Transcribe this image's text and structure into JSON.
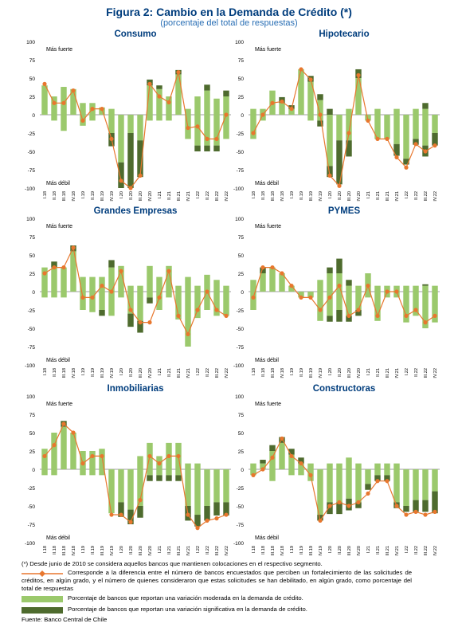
{
  "figure": {
    "title": "Figura 2: Cambio en la Demanda de Crédito (*)",
    "subtitle": "(porcentaje del total de respuestas)"
  },
  "colors": {
    "moderate": "#9bc96c",
    "significant": "#4e6b2e",
    "net_line": "#e8772e",
    "net_marker": "#e8772e",
    "title": "#003d7d",
    "axis": "#7f7f7f"
  },
  "labels": {
    "stronger": "Más fuerte",
    "weaker": "Más débil"
  },
  "chart_data": [
    {
      "type": "bar",
      "title": "Consumo",
      "ylim": [
        -100,
        100
      ],
      "yticks": [
        -100,
        -75,
        -50,
        -25,
        0,
        25,
        50,
        75,
        100
      ],
      "categories": [
        "I.18",
        "II.18",
        "III.18",
        "IV.18",
        "I.19",
        "II.19",
        "III.19",
        "IV.19",
        "I.20",
        "II.20",
        "III.20",
        "IV.20",
        "I.21",
        "II.21",
        "III.21",
        "IV.21",
        "I.22",
        "II.22",
        "III.22",
        "IV.22"
      ],
      "series": [
        {
          "key": "mod_pos",
          "values": [
            40,
            25,
            38,
            35,
            16,
            16,
            10,
            8,
            0,
            0,
            0,
            40,
            35,
            25,
            55,
            8,
            25,
            33,
            22,
            25
          ]
        },
        {
          "key": "mod_neg",
          "values": [
            0,
            -8,
            -22,
            0,
            -15,
            -8,
            0,
            -25,
            -65,
            -25,
            -35,
            -8,
            -8,
            -8,
            0,
            -33,
            -42,
            -42,
            -42,
            -33
          ]
        },
        {
          "key": "sig_pos",
          "values": [
            0,
            0,
            0,
            0,
            0,
            0,
            0,
            0,
            0,
            0,
            0,
            8,
            5,
            0,
            6,
            0,
            0,
            8,
            0,
            8
          ]
        },
        {
          "key": "sig_neg",
          "values": [
            0,
            0,
            0,
            0,
            0,
            0,
            0,
            -18,
            -35,
            -75,
            -50,
            0,
            0,
            0,
            0,
            0,
            -8,
            -8,
            -8,
            0
          ]
        },
        {
          "key": "net",
          "values": [
            42,
            16,
            16,
            33,
            -8,
            8,
            8,
            -33,
            -90,
            -100,
            -83,
            42,
            25,
            17,
            58,
            -18,
            -16,
            -33,
            -33,
            0
          ]
        }
      ]
    },
    {
      "type": "bar",
      "title": "Hipotecario",
      "ylim": [
        -100,
        100
      ],
      "yticks": [
        -100,
        -75,
        -50,
        -25,
        0,
        25,
        50,
        75,
        100
      ],
      "categories": [
        "I.18",
        "II.18",
        "III.18",
        "IV.18",
        "I.19",
        "II.19",
        "III.19",
        "IV.19",
        "I.20",
        "II.20",
        "III.20",
        "IV.20",
        "I.21",
        "II.21",
        "III.21",
        "IV.21",
        "I.22",
        "II.22",
        "III.22",
        "IV.22"
      ],
      "series": [
        {
          "key": "mod_pos",
          "values": [
            8,
            8,
            33,
            16,
            8,
            62,
            45,
            20,
            0,
            0,
            8,
            50,
            0,
            8,
            0,
            8,
            0,
            8,
            8,
            0
          ]
        },
        {
          "key": "mod_neg",
          "values": [
            -33,
            -8,
            0,
            0,
            0,
            0,
            -8,
            -8,
            -70,
            -35,
            -35,
            0,
            -8,
            -33,
            -33,
            -40,
            -60,
            -33,
            -42,
            -25
          ]
        },
        {
          "key": "sig_pos",
          "values": [
            0,
            0,
            0,
            8,
            5,
            0,
            8,
            8,
            8,
            0,
            0,
            12,
            0,
            0,
            0,
            0,
            0,
            0,
            8,
            0
          ]
        },
        {
          "key": "sig_neg",
          "values": [
            0,
            0,
            0,
            0,
            0,
            0,
            0,
            -8,
            -15,
            -60,
            -22,
            0,
            0,
            0,
            0,
            -16,
            -8,
            -8,
            -15,
            -17
          ]
        },
        {
          "key": "net",
          "values": [
            -25,
            0,
            16,
            18,
            8,
            62,
            48,
            0,
            -83,
            -97,
            -25,
            54,
            -8,
            -33,
            -33,
            -58,
            -72,
            -40,
            -50,
            -42
          ]
        }
      ]
    },
    {
      "type": "bar",
      "title": "Grandes Empresas",
      "ylim": [
        -100,
        100
      ],
      "yticks": [
        -100,
        -75,
        -50,
        -25,
        0,
        25,
        50,
        75,
        100
      ],
      "categories": [
        "I.18",
        "II.18",
        "III.18",
        "IV.18",
        "I.19",
        "II.19",
        "III.19",
        "IV.19",
        "I.20",
        "II.20",
        "III.20",
        "IV.20",
        "I.21",
        "II.21",
        "III.21",
        "IV.21",
        "I.22",
        "II.22",
        "III.22",
        "IV.22"
      ],
      "series": [
        {
          "key": "mod_pos",
          "values": [
            33,
            33,
            33,
            55,
            20,
            20,
            20,
            33,
            35,
            8,
            8,
            35,
            20,
            35,
            8,
            20,
            8,
            23,
            16,
            8
          ]
        },
        {
          "key": "mod_neg",
          "values": [
            -8,
            -8,
            -8,
            0,
            -25,
            -28,
            -25,
            -33,
            -8,
            -30,
            -40,
            -8,
            -25,
            -8,
            -38,
            -75,
            -36,
            -25,
            -33,
            -33
          ]
        },
        {
          "key": "sig_pos",
          "values": [
            0,
            8,
            0,
            8,
            0,
            0,
            0,
            10,
            0,
            0,
            0,
            0,
            0,
            0,
            0,
            0,
            0,
            0,
            0,
            0
          ]
        },
        {
          "key": "sig_neg",
          "values": [
            0,
            0,
            0,
            0,
            0,
            0,
            -8,
            0,
            0,
            -18,
            -16,
            -8,
            0,
            0,
            0,
            0,
            0,
            0,
            0,
            0
          ]
        },
        {
          "key": "net",
          "values": [
            25,
            33,
            33,
            60,
            -8,
            -8,
            8,
            0,
            28,
            -25,
            -42,
            -42,
            -8,
            28,
            -33,
            -58,
            -25,
            0,
            -25,
            -33
          ]
        }
      ]
    },
    {
      "type": "bar",
      "title": "PYMES",
      "ylim": [
        -100,
        100
      ],
      "yticks": [
        -100,
        -75,
        -50,
        -25,
        0,
        25,
        50,
        75,
        100
      ],
      "categories": [
        "I.18",
        "II.18",
        "III.18",
        "IV.18",
        "I.19",
        "II.19",
        "III.19",
        "IV.19",
        "I.20",
        "II.20",
        "III.20",
        "IV.20",
        "I.21",
        "II.21",
        "III.21",
        "IV.21",
        "I.22",
        "II.22",
        "III.22",
        "IV.22"
      ],
      "series": [
        {
          "key": "mod_pos",
          "values": [
            16,
            25,
            33,
            25,
            8,
            0,
            0,
            16,
            25,
            25,
            8,
            8,
            25,
            8,
            8,
            8,
            8,
            8,
            8,
            8
          ]
        },
        {
          "key": "mod_neg",
          "values": [
            -25,
            0,
            0,
            0,
            0,
            -8,
            -8,
            -40,
            -33,
            -25,
            -33,
            -25,
            -8,
            -40,
            -8,
            -8,
            -42,
            -33,
            -50,
            -42
          ]
        },
        {
          "key": "sig_pos",
          "values": [
            0,
            8,
            0,
            0,
            0,
            0,
            0,
            0,
            8,
            20,
            8,
            0,
            0,
            0,
            0,
            0,
            0,
            0,
            2,
            0
          ]
        },
        {
          "key": "sig_neg",
          "values": [
            0,
            0,
            0,
            0,
            0,
            0,
            0,
            0,
            -8,
            -16,
            -8,
            -8,
            0,
            0,
            0,
            0,
            0,
            0,
            0,
            0
          ]
        },
        {
          "key": "net",
          "values": [
            -8,
            33,
            33,
            25,
            8,
            -8,
            -8,
            -25,
            -8,
            8,
            -33,
            -25,
            8,
            -33,
            0,
            0,
            -33,
            -25,
            -42,
            -33
          ]
        }
      ]
    },
    {
      "type": "bar",
      "title": "Inmobiliarias",
      "ylim": [
        -100,
        100
      ],
      "yticks": [
        -100,
        -75,
        -50,
        -25,
        0,
        25,
        50,
        75,
        100
      ],
      "categories": [
        "I.18",
        "II.18",
        "III.18",
        "IV.18",
        "I.19",
        "II.19",
        "III.19",
        "IV.19",
        "I.20",
        "II.20",
        "III.20",
        "IV.20",
        "I.21",
        "II.21",
        "III.21",
        "IV.21",
        "I.22",
        "II.22",
        "III.22",
        "IV.22"
      ],
      "series": [
        {
          "key": "mod_pos",
          "values": [
            28,
            50,
            58,
            50,
            25,
            25,
            28,
            0,
            0,
            0,
            18,
            36,
            18,
            36,
            36,
            8,
            8,
            0,
            0,
            0
          ]
        },
        {
          "key": "mod_neg",
          "values": [
            -8,
            -8,
            0,
            0,
            -8,
            -8,
            -8,
            -60,
            -45,
            -55,
            -50,
            -8,
            -8,
            -8,
            -8,
            -50,
            -62,
            -50,
            -45,
            -45
          ]
        },
        {
          "key": "sig_pos",
          "values": [
            0,
            0,
            8,
            0,
            0,
            0,
            0,
            0,
            0,
            0,
            0,
            0,
            0,
            0,
            0,
            0,
            0,
            0,
            0,
            0
          ]
        },
        {
          "key": "sig_neg",
          "values": [
            0,
            0,
            0,
            0,
            0,
            0,
            0,
            0,
            -20,
            -20,
            -16,
            -8,
            -8,
            -8,
            -8,
            -20,
            -16,
            -20,
            -18,
            -18
          ]
        },
        {
          "key": "net",
          "values": [
            18,
            33,
            62,
            50,
            8,
            18,
            18,
            -62,
            -62,
            -72,
            -42,
            18,
            8,
            18,
            18,
            -62,
            -80,
            -70,
            -67,
            -62
          ]
        }
      ]
    },
    {
      "type": "bar",
      "title": "Constructoras",
      "ylim": [
        -100,
        100
      ],
      "yticks": [
        -100,
        -75,
        -50,
        -25,
        0,
        25,
        50,
        75,
        100
      ],
      "categories": [
        "I.18",
        "II.18",
        "III.18",
        "IV.18",
        "I.19",
        "II.19",
        "III.19",
        "IV.19",
        "I.20",
        "II.20",
        "III.20",
        "IV.20",
        "I.21",
        "II.21",
        "III.21",
        "IV.21",
        "I.22",
        "II.22",
        "III.22",
        "IV.22"
      ],
      "series": [
        {
          "key": "mod_pos",
          "values": [
            8,
            8,
            25,
            36,
            20,
            8,
            8,
            0,
            8,
            8,
            16,
            8,
            0,
            8,
            8,
            8,
            0,
            0,
            0,
            0
          ]
        },
        {
          "key": "mod_neg",
          "values": [
            -8,
            0,
            -16,
            0,
            -8,
            -8,
            -16,
            -62,
            -45,
            -45,
            -40,
            -45,
            -20,
            -8,
            -8,
            -45,
            -50,
            -42,
            -42,
            -30
          ]
        },
        {
          "key": "sig_pos",
          "values": [
            0,
            5,
            8,
            8,
            8,
            8,
            0,
            0,
            0,
            0,
            0,
            0,
            0,
            0,
            0,
            0,
            0,
            0,
            0,
            0
          ]
        },
        {
          "key": "sig_neg",
          "values": [
            0,
            0,
            0,
            0,
            0,
            0,
            0,
            -8,
            -16,
            -16,
            -16,
            -8,
            -8,
            -8,
            -8,
            -8,
            -8,
            -16,
            -16,
            -30
          ]
        },
        {
          "key": "net",
          "values": [
            -8,
            0,
            16,
            42,
            18,
            8,
            -8,
            -70,
            -50,
            -45,
            -50,
            -45,
            -33,
            -16,
            -16,
            -50,
            -62,
            -58,
            -62,
            -58
          ]
        }
      ]
    }
  ],
  "notes": {
    "footnote": "(*) Desde junio de 2010 se considera aquellos bancos que mantienen colocaciones en el respectivo segmento.",
    "net_legend": "Corresponde a la diferencia entre el número de bancos encuestados que perciben un fortalecimiento de las solicitudes de créditos, en algún grado, y el número de quienes consideraron que estas solicitudes se han debilitado, en algún grado, como porcentaje del total de respuestas",
    "moderate_legend": "Porcentaje de bancos que reportan una variación moderada en la demanda de crédito.",
    "significant_legend": "Porcentaje de bancos que reportan una variación significativa en la demanda de crédito.",
    "source": "Fuente: Banco Central de Chile"
  }
}
